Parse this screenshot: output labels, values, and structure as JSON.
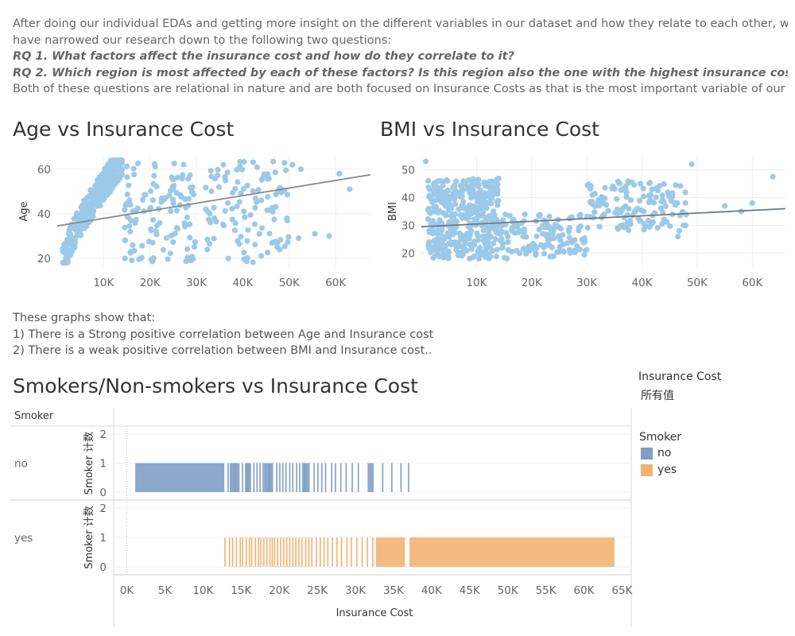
{
  "intro": {
    "line1": "After doing our individual EDAs and getting more insight on the different variables in our dataset and how they relate to each other, we",
    "line2": "have narrowed our research down to the following two questions:",
    "rq1": "RQ 1. What factors affect the insurance cost and how do they correlate to it?",
    "rq2": "RQ 2. Which region is most affected by each of these factors? Is this region also the one with the highest insurance costs?",
    "line5": "Both of these questions are relational in nature and are both focused on Insurance Costs as that is the most important variable of our da.."
  },
  "findings": {
    "line1": "These graphs show that:",
    "line2": "1) There is a Strong positive correlation between Age and Insurance cost",
    "line3": "2) There is a weak positive correlation between BMI and Insurance cost.."
  },
  "colors": {
    "point": "#9dc9e8",
    "trend": "#8c8c8c",
    "no": "#7f9fc4",
    "yes": "#f4b272"
  },
  "chart_data": [
    {
      "type": "scatter",
      "title": "Age vs Insurance Cost",
      "xlabel": "",
      "ylabel": "Age",
      "xticks": [
        "10K",
        "20K",
        "30K",
        "40K",
        "50K",
        "60K"
      ],
      "xtick_values": [
        10000,
        20000,
        30000,
        40000,
        50000,
        60000
      ],
      "yticks": [
        "20",
        "40",
        "60"
      ],
      "ytick_values": [
        20,
        40,
        60
      ],
      "xlim": [
        0,
        67500
      ],
      "ylim": [
        16,
        66
      ],
      "trend": [
        [
          0,
          34.5
        ],
        [
          67500,
          57.5
        ]
      ],
      "clusters": [
        {
          "x": [
            1200,
            14000
          ],
          "y": [
            18,
            64
          ],
          "band": 7,
          "n": 380
        },
        {
          "x": [
            14500,
            30000
          ],
          "y": [
            18,
            64
          ],
          "band": 0,
          "n": 120
        },
        {
          "x": [
            32000,
            50000
          ],
          "y": [
            18,
            64
          ],
          "band": 0,
          "n": 110
        }
      ],
      "outliers": [
        [
          52000,
          29
        ],
        [
          55500,
          31
        ],
        [
          58600,
          30
        ],
        [
          60800,
          58
        ],
        [
          63000,
          51
        ],
        [
          50700,
          62
        ],
        [
          52500,
          60
        ]
      ]
    },
    {
      "type": "scatter",
      "title": "BMI vs Insurance Cost",
      "xlabel": "",
      "ylabel": "BMI",
      "xticks": [
        "10K",
        "20K",
        "30K",
        "40K",
        "50K",
        "60K"
      ],
      "xtick_values": [
        10000,
        20000,
        30000,
        40000,
        50000,
        60000
      ],
      "yticks": [
        "20",
        "30",
        "40",
        "50"
      ],
      "ytick_values": [
        20,
        30,
        40,
        50
      ],
      "xlim": [
        0,
        66000
      ],
      "ylim": [
        15,
        55
      ],
      "trend": [
        [
          0,
          29.5
        ],
        [
          66000,
          36.0
        ]
      ],
      "clusters": [
        {
          "x": [
            1200,
            14000
          ],
          "y": [
            18,
            47
          ],
          "band": 0,
          "n": 420
        },
        {
          "x": [
            14000,
            30000
          ],
          "y": [
            18,
            34
          ],
          "band": 0,
          "n": 140
        },
        {
          "x": [
            30000,
            48000
          ],
          "y": [
            28,
            46
          ],
          "band": 0,
          "n": 140
        }
      ],
      "outliers": [
        [
          800,
          53
        ],
        [
          49000,
          52
        ],
        [
          55000,
          37
        ],
        [
          58000,
          35
        ],
        [
          60000,
          38
        ],
        [
          63700,
          47.5
        ],
        [
          47500,
          30
        ],
        [
          46500,
          26
        ]
      ]
    },
    {
      "type": "bar",
      "title": "Smokers/Non-smokers vs Insurance Cost",
      "row_header": "Smoker",
      "rows": [
        "no",
        "yes"
      ],
      "ylabel": "Smoker 计数",
      "xlabel": "Insurance Cost",
      "xticks": [
        "0K",
        "5K",
        "10K",
        "15K",
        "20K",
        "25K",
        "30K",
        "35K",
        "40K",
        "45K",
        "50K",
        "55K",
        "60K",
        "65K"
      ],
      "xlim": [
        -1000,
        66000
      ],
      "yticks": [
        "0",
        "1",
        "2"
      ],
      "ylim": [
        0,
        2.2
      ],
      "series": [
        {
          "name": "no",
          "solid": [
            [
              1100,
              12800
            ],
            [
              13500,
              14800
            ],
            [
              15500,
              16300
            ],
            [
              18000,
              19200
            ],
            [
              23000,
              24000
            ],
            [
              31600,
              32400
            ]
          ],
          "sticks": [
            13200,
            14100,
            15100,
            15800,
            16600,
            17000,
            17400,
            17800,
            18600,
            19600,
            20000,
            20400,
            20800,
            21300,
            21700,
            22200,
            22600,
            23300,
            24500,
            25000,
            25500,
            26000,
            26800,
            27300,
            28000,
            28700,
            29500,
            30300,
            33500,
            34700,
            35900,
            36900
          ],
          "value": 1
        },
        {
          "name": "yes",
          "solid": [
            [
              32700,
              36500
            ],
            [
              37100,
              64000
            ]
          ],
          "sticks": [
            12800,
            13400,
            13800,
            14300,
            14800,
            15100,
            15600,
            16000,
            16300,
            16800,
            17200,
            17500,
            17900,
            18300,
            18700,
            19000,
            19300,
            19700,
            20100,
            20500,
            20900,
            21300,
            21700,
            22100,
            22500,
            22900,
            23400,
            23800,
            24200,
            24800,
            25300,
            25800,
            26300,
            26900,
            27500,
            28100,
            28800,
            29400,
            30100,
            30800,
            31500,
            32200
          ],
          "value": 1
        }
      ]
    }
  ],
  "legend": {
    "insurance_title": "Insurance Cost",
    "insurance_sub": "所有值",
    "smoker_title": "Smoker",
    "items": [
      "no",
      "yes"
    ]
  }
}
